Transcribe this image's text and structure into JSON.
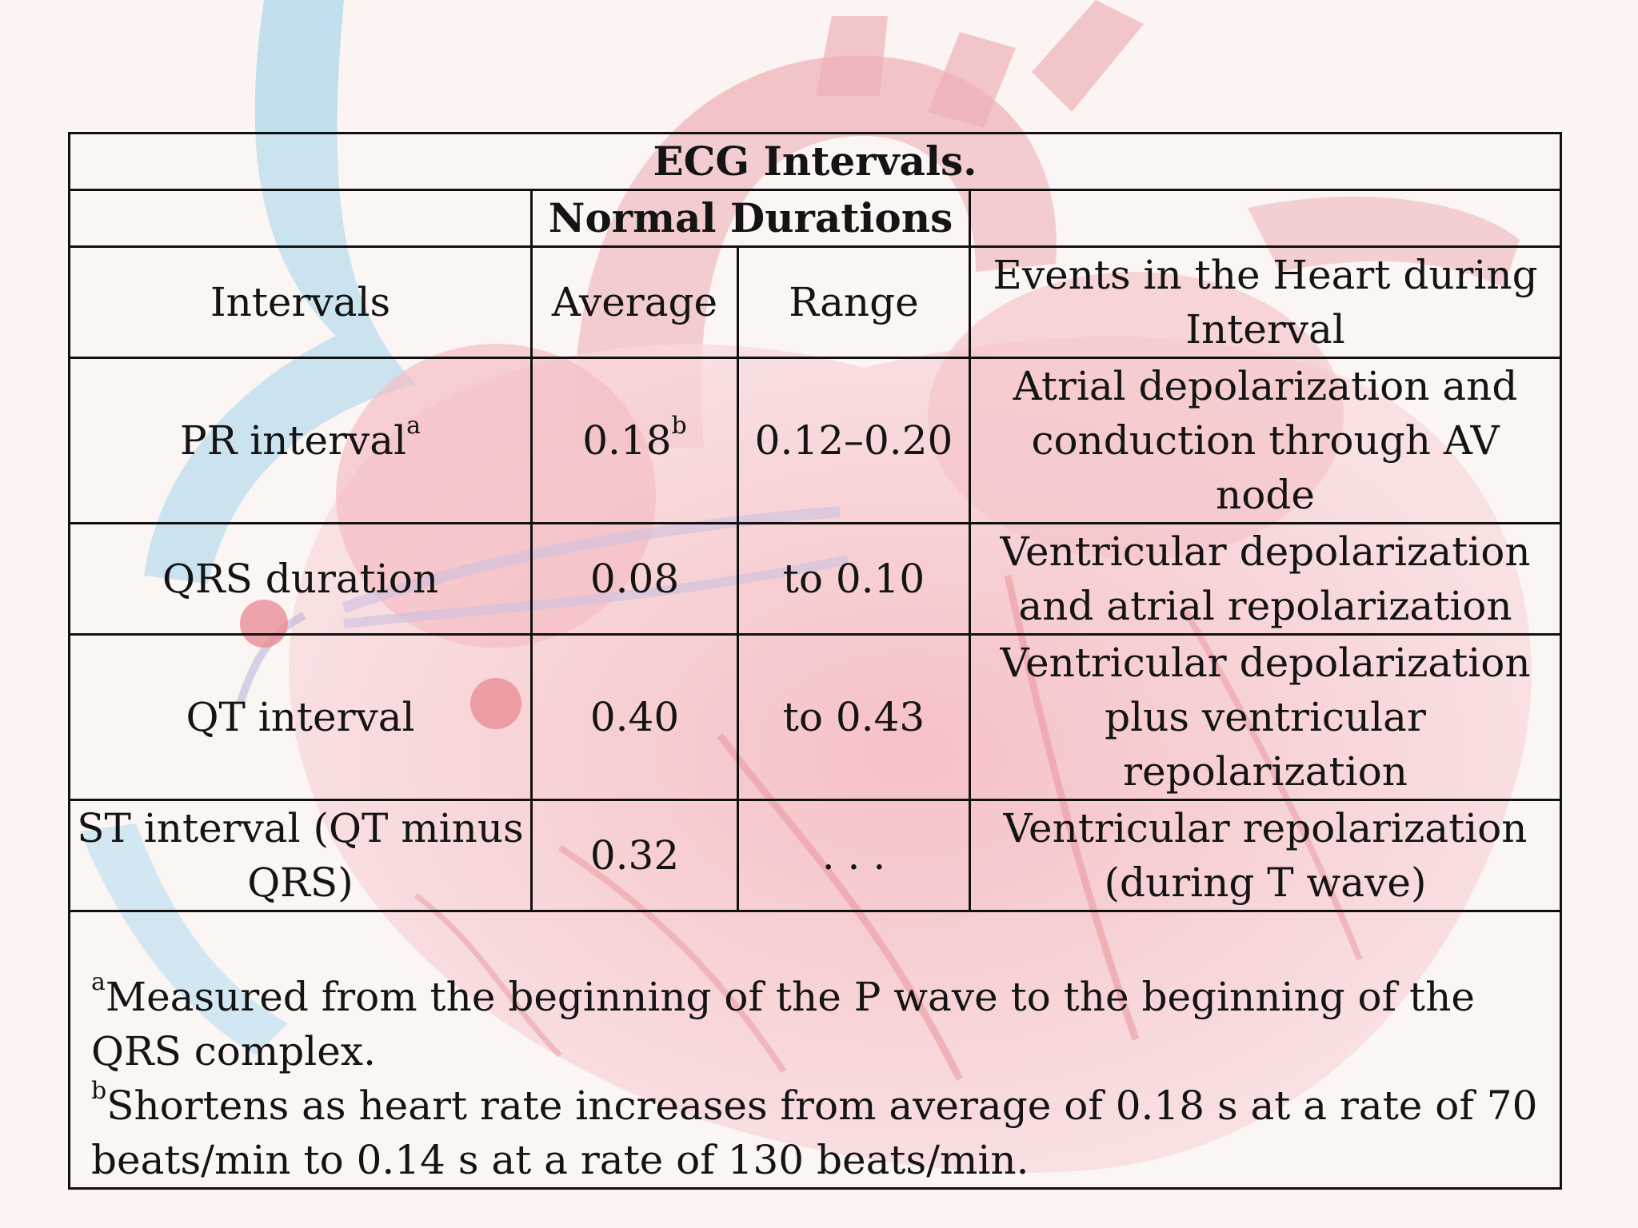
{
  "table": {
    "title": "ECG Intervals.",
    "group_header": "Normal Durations",
    "columns": [
      "Intervals",
      "Average",
      "Range",
      "Events in the Heart during Interval"
    ],
    "rows": [
      {
        "interval": "PR interval",
        "interval_mark": "a",
        "average": "0.18",
        "average_mark": "b",
        "range": "0.12–0.20",
        "events": "Atrial depolarization and conduction through AV node"
      },
      {
        "interval": "QRS duration",
        "interval_mark": "",
        "average": "0.08",
        "average_mark": "",
        "range": "to 0.10",
        "events": "Ventricular depolarization and atrial repolarization"
      },
      {
        "interval": "QT interval",
        "interval_mark": "",
        "average": "0.40",
        "average_mark": "",
        "range": "to 0.43",
        "events": "Ventricular depolarization plus ventricular repolarization"
      },
      {
        "interval": "ST interval (QT minus QRS)",
        "interval_mark": "",
        "average": "0.32",
        "average_mark": "",
        "range": ". . .",
        "events": "Ventricular repolarization (during T wave)"
      }
    ],
    "footnotes": [
      {
        "mark": "a",
        "text": "Measured from the beginning of the P wave to the beginning of the QRS complex."
      },
      {
        "mark": "b",
        "text": "Shortens as heart rate increases from average of 0.18 s at a rate of 70 beats/min to 0.14 s at a rate of 130 beats/min."
      }
    ]
  },
  "background": {
    "accent": "#e8606e",
    "light": "#f7c3c7",
    "blue": "#6ab4d8"
  }
}
